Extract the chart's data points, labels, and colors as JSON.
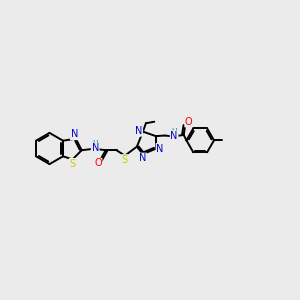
{
  "background_color": "#ebebeb",
  "figsize": [
    3.0,
    3.0
  ],
  "dpi": 100,
  "atom_colors": {
    "S": "#cccc00",
    "N": "#0000cc",
    "O": "#ff0000",
    "C": "#000000",
    "H": "#008888"
  },
  "bond_color": "#000000",
  "bond_width": 1.4,
  "font_size_atom": 7.0,
  "font_size_h": 5.5
}
